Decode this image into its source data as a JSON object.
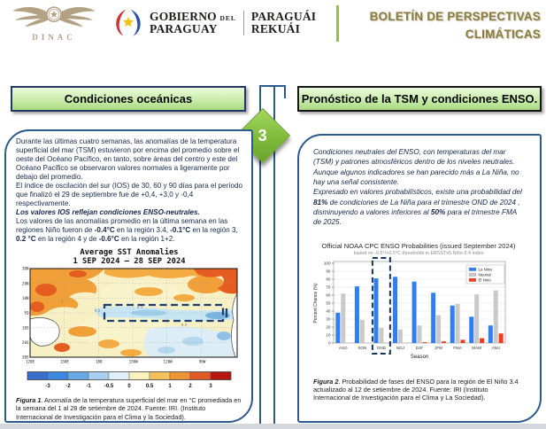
{
  "header": {
    "dinac_label": "DINAC",
    "gov": {
      "line1a": "GOBIERNO",
      "line1b": "DEL",
      "line2": "PARAGUAY",
      "right1": "PARAGUÁI",
      "right2": "REKUÁI"
    },
    "bulletin_line1": "BOLETÍN DE PERSPECTIVAS",
    "bulletin_line2": "CLIMÁTICAS",
    "accent_green": "#9bbb59",
    "title_color": "#8d7c3e"
  },
  "step_number": "3",
  "left_panel": {
    "title": "Condiciones oceánicas",
    "body": [
      {
        "segments": [
          {
            "t": "Durante las últimas cuatro semanas, las anomalías de la temperatura superficial del mar (TSM) estuvieron por encima del promedio sobre el oeste del Océano Pacífico, en tanto, sobre áreas del centro y este del Océano Pacifico se observaron valores normales a ligeramente por debajo del promedio."
          }
        ]
      },
      {
        "segments": [
          {
            "t": "El índice de oscilación del sur (IOS) de 30, 60 y 90 días para el período que finalizó el 29 de septiembre fue de +0,4, +3,0 y -0,4 respectivamente."
          }
        ]
      },
      {
        "segments": [
          {
            "t": "Los valores IOS reflejan condiciones ENSO-neutrales.",
            "b": true,
            "i": true
          }
        ]
      },
      {
        "segments": [
          {
            "t": "Los valores de las anomalías promedio en la última semana en las regiones Niño fueron de "
          },
          {
            "t": "-0.4°C",
            "b": true
          },
          {
            "t": " en la región 3.4, "
          },
          {
            "t": "-0.1°C",
            "b": true
          },
          {
            "t": " en la región 3, "
          },
          {
            "t": "0.2 °C",
            "b": true
          },
          {
            "t": " en la región 4 y de "
          },
          {
            "t": "-0.6°C",
            "b": true
          },
          {
            "t": " en la región 1+2."
          }
        ]
      }
    ],
    "figure": {
      "title_line1": "Average SST Anomalies",
      "title_line2": "1 SEP 2024 — 28 SEP 2024",
      "lat_ticks": [
        "30N",
        "20N",
        "10N",
        "EQ",
        "10S",
        "20S",
        "30S"
      ],
      "lon_ticks": [
        "120E",
        "150E",
        "180",
        "150W",
        "120W",
        "90W"
      ],
      "contour_labels": [
        "0.5",
        "0.5",
        "1",
        "0.5"
      ],
      "colorbar_labels": [
        "-3",
        "-2",
        "-1",
        "-0.5",
        "0",
        "0.5",
        "1",
        "2",
        "3"
      ],
      "colorbar_colors": [
        "#3a6ecf",
        "#3e87df",
        "#69aae5",
        "#a8cff0",
        "#e2f1f9",
        "#f7f2bf",
        "#f2c05c",
        "#ee9434",
        "#e05a28",
        "#b5170e"
      ]
    },
    "caption_bold": "Figura 1",
    "caption_text": ". Anomalía de la temperatura superficial del mar en °C promediada en la semana del 1 al 28 de setiembre de 2024. Fuente: IRI. (Instituto Internacional de Investigación para el Clima y la Sociedad)."
  },
  "right_panel": {
    "title": "Pronóstico de la TSM y condiciones ENSO.",
    "body": [
      {
        "segments": [
          {
            "t": "Condiciones neutrales del ENSO, con temperaturas del mar (TSM) y patrones atmosféricos dentro de los niveles neutrales."
          }
        ]
      },
      {
        "segments": [
          {
            "t": "Aunque algunos indicadores se han parecido más a La Niña, no hay una señal consistente."
          }
        ]
      },
      {
        "segments": [
          {
            "t": "Expresado en valores probabilísticos, existe una probabilidad del "
          },
          {
            "t": "81%",
            "b": true
          },
          {
            "t": " de condiciones de La Niña para el trimestre OND de 2024 , disminuyendo a valores inferiores al "
          },
          {
            "t": "50%",
            "b": true
          },
          {
            "t": " para el trimestre FMA de 2025."
          }
        ]
      }
    ],
    "caption_bold": "Figura 2",
    "caption_text": ". Probabilidad de fases del ENSO para la región de El Niño 3.4 actualizado al 12 de setiembre de 2024. Fuente: IRI (Instituto Internacional de Investigación para el Clima y La Sociedad)."
  },
  "chart_data": {
    "type": "bar",
    "title": "Official NOAA CPC ENSO Probabilities (issued September 2024)",
    "subtitle": "based on -0.5°/+0.5°C thresholds in ERSSTv5 Niño-3.4 index",
    "xlabel": "Season",
    "ylabel": "Percent Chance (%)",
    "ylim": [
      0,
      100
    ],
    "y_ticks": [
      0,
      10,
      20,
      30,
      40,
      50,
      60,
      70,
      80,
      90,
      100
    ],
    "categories": [
      "ASO",
      "SON",
      "OND",
      "NDJ",
      "DJF",
      "JFM",
      "FMA",
      "MAM",
      "AMJ"
    ],
    "series": [
      {
        "name": "La Nina",
        "color": "#2f7ff2",
        "values": [
          38,
          71,
          81,
          83,
          77,
          63,
          47,
          33,
          22
        ]
      },
      {
        "name": "Neutral",
        "color": "#c9c9c9",
        "values": [
          62,
          29,
          19,
          17,
          22,
          35,
          49,
          61,
          66
        ]
      },
      {
        "name": "El Nino",
        "color": "#f23b22",
        "values": [
          0,
          0,
          0,
          0,
          1,
          2,
          4,
          6,
          12
        ]
      }
    ],
    "highlight_category": "OND",
    "legend_position": "top-right",
    "grid": true
  }
}
